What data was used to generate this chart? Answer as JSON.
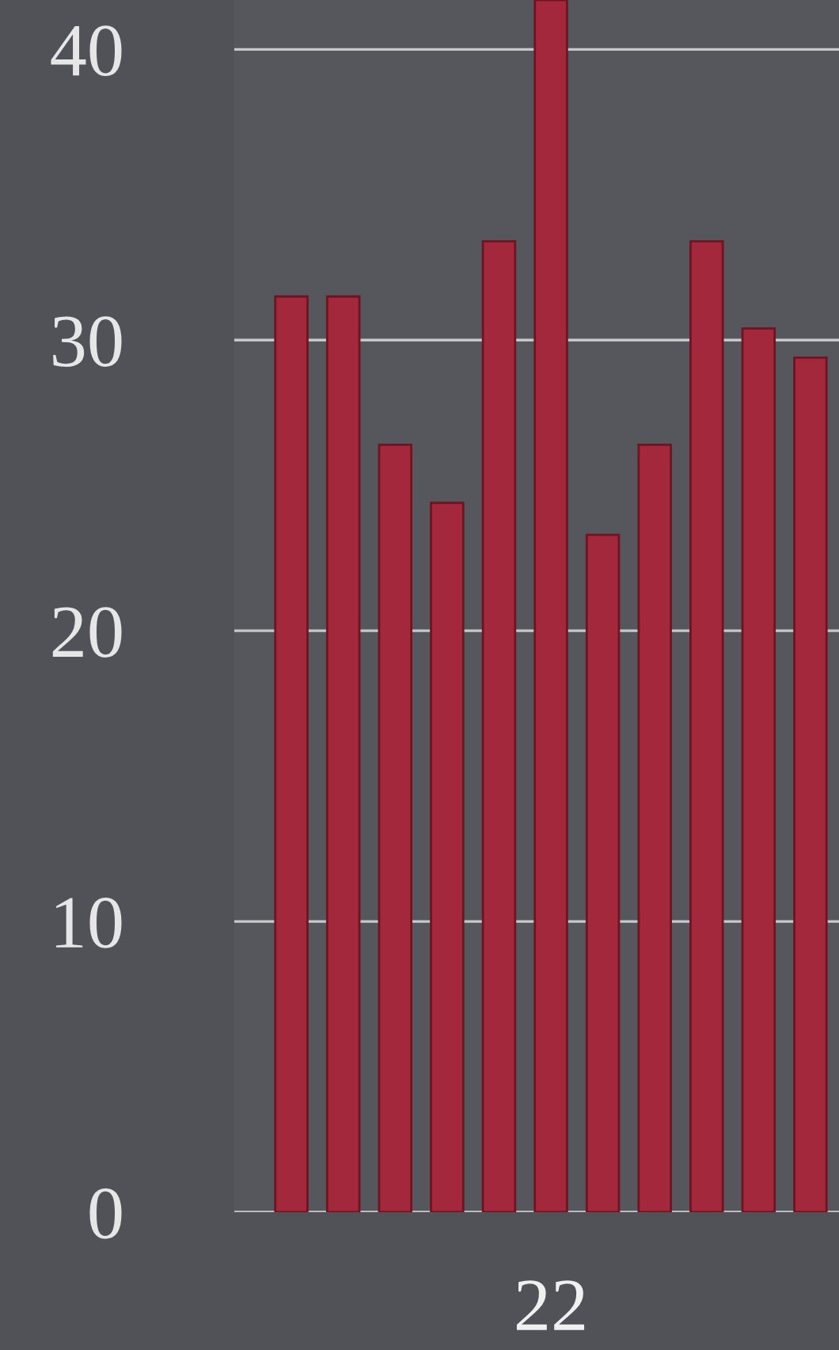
{
  "chart_data": {
    "type": "bar",
    "categories": [
      null,
      null,
      null,
      null,
      null,
      "22",
      null,
      null,
      null,
      null,
      null
    ],
    "values": [
      31.5,
      31.5,
      26.4,
      24.4,
      33.4,
      41.7,
      23.3,
      26.4,
      33.4,
      30.4,
      29.4
    ],
    "color": "#a3283c",
    "ylim": [
      0,
      41.7
    ],
    "yticks": [
      0,
      10,
      20,
      30,
      40
    ],
    "grid": "y"
  }
}
